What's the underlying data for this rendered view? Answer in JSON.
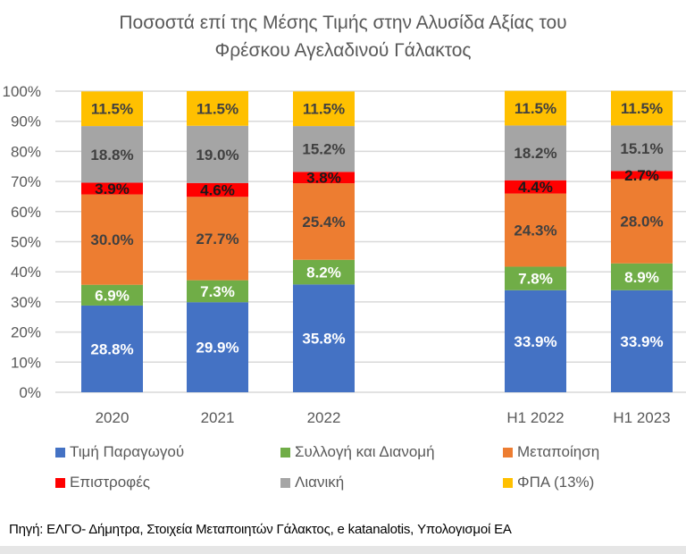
{
  "chart_data": {
    "type": "bar",
    "stacked": true,
    "title_lines": [
      "Ποσοστά επί της Μέσης Τιμής στην Αλυσίδα Αξίας του",
      "Φρέσκου Αγελαδινού Γάλακτος"
    ],
    "categories": [
      "2020",
      "2021",
      "2022",
      "H1 2022",
      "H1 2023"
    ],
    "category_gap_after": "2022",
    "ylim": [
      0,
      100
    ],
    "yticks": [
      0,
      10,
      20,
      30,
      40,
      50,
      60,
      70,
      80,
      90,
      100
    ],
    "ytick_labels": [
      "0%",
      "10%",
      "20%",
      "30%",
      "40%",
      "50%",
      "60%",
      "70%",
      "80%",
      "90%",
      "100%"
    ],
    "grid": true,
    "legend_position": "bottom",
    "series": [
      {
        "name": "Τιμή Παραγωγού",
        "color": "#4472C4",
        "label_color": "#FFFFFF",
        "values": [
          28.8,
          29.9,
          35.8,
          33.9,
          33.9
        ],
        "labels": [
          "28.8%",
          "29.9%",
          "35.8%",
          "33.9%",
          "33.9%"
        ]
      },
      {
        "name": "Συλλογή και Διανομή",
        "color": "#70AD47",
        "label_color": "#FFFFFF",
        "values": [
          6.9,
          7.3,
          8.2,
          7.8,
          8.9
        ],
        "labels": [
          "6.9%",
          "7.3%",
          "8.2%",
          "7.8%",
          "8.9%"
        ]
      },
      {
        "name": "Μεταποίηση",
        "color": "#ED7D31",
        "label_color": "#404040",
        "values": [
          30.0,
          27.7,
          25.4,
          24.3,
          28.0
        ],
        "labels": [
          "30.0%",
          "27.7%",
          "25.4%",
          "24.3%",
          "28.0%"
        ]
      },
      {
        "name": "Επιστροφές",
        "color": "#FF0000",
        "label_color": "#1a1a1a",
        "values": [
          3.9,
          4.6,
          3.8,
          4.4,
          2.7
        ],
        "labels": [
          "3.9%",
          "4.6%",
          "3.8%",
          "4.4%",
          "2.7%"
        ]
      },
      {
        "name": "Λιανική",
        "color": "#A5A5A5",
        "label_color": "#404040",
        "values": [
          18.8,
          19.0,
          15.2,
          18.2,
          15.1
        ],
        "labels": [
          "18.8%",
          "19.0%",
          "15.2%",
          "18.2%",
          "15.1%"
        ]
      },
      {
        "name": "ΦΠΑ (13%)",
        "color": "#FFC000",
        "label_color": "#404040",
        "values": [
          11.5,
          11.5,
          11.5,
          11.5,
          11.5
        ],
        "labels": [
          "11.5%",
          "11.5%",
          "11.5%",
          "11.5%",
          "11.5%"
        ]
      }
    ]
  },
  "source_note": "Πηγή: ΕΛΓΟ- Δήμητρα, Στοιχεία Μεταποιητών Γάλακτος, e katanalotis, Υπολογισμοί ΕΑ"
}
